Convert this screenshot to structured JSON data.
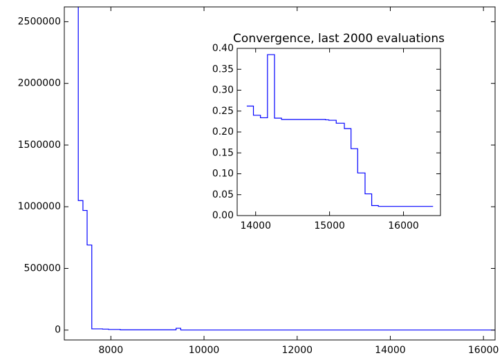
{
  "chart_data": [
    {
      "type": "line",
      "drawstyle": "steps-post",
      "color": "#0000ff",
      "x": [
        7300,
        7300,
        7400,
        7490,
        7590,
        7820,
        7950,
        8200,
        9400,
        9500,
        16250
      ],
      "values": [
        3000000,
        1050000,
        970000,
        690000,
        10000,
        8000,
        5000,
        2000,
        15000,
        1000,
        1000
      ],
      "xlim": [
        7000,
        16250
      ],
      "ylim": [
        -80000,
        2620000
      ],
      "xticks": [
        8000,
        10000,
        12000,
        14000,
        16000
      ],
      "yticks": [
        0,
        500000,
        1000000,
        1500000,
        2000000,
        2500000
      ]
    },
    {
      "type": "line",
      "drawstyle": "steps-post",
      "color": "#0000ff",
      "title": "Convergence, last 2000 evaluations",
      "x": [
        13880,
        13970,
        14065,
        14160,
        14255,
        14350,
        14945,
        14990,
        15090,
        15200,
        15290,
        15380,
        15480,
        15570,
        15660,
        16400
      ],
      "values": [
        0.262,
        0.24,
        0.234,
        0.385,
        0.233,
        0.23,
        0.229,
        0.228,
        0.221,
        0.208,
        0.16,
        0.102,
        0.052,
        0.024,
        0.022,
        0.022
      ],
      "xlim": [
        13750,
        16500
      ],
      "ylim": [
        0,
        0.4
      ],
      "xticks": [
        14000,
        15000,
        16000
      ],
      "yticks": [
        {
          "value": 0,
          "label": "0.00"
        },
        0.05,
        {
          "value": 0.1,
          "label": "0.10"
        },
        0.15,
        {
          "value": 0.2,
          "label": "0.20"
        },
        0.25,
        {
          "value": 0.3,
          "label": "0.30"
        },
        0.35,
        {
          "value": 0.4,
          "label": "0.40"
        }
      ]
    }
  ]
}
